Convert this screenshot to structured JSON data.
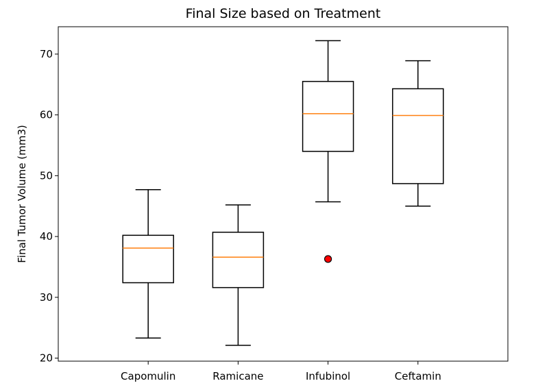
{
  "chart_data": {
    "type": "box",
    "title": "Final Size based on Treatment",
    "xlabel": "",
    "ylabel": "Final Tumor Volume (mm3)",
    "ylim": [
      19.5,
      74.5
    ],
    "yticks": [
      20,
      30,
      40,
      50,
      60,
      70
    ],
    "categories": [
      "Capomulin",
      "Ramicane",
      "Infubinol",
      "Ceftamin"
    ],
    "boxes": [
      {
        "name": "Capomulin",
        "whisker_low": 23.3,
        "q1": 32.4,
        "median": 38.1,
        "q3": 40.2,
        "whisker_high": 47.7,
        "outliers": []
      },
      {
        "name": "Ramicane",
        "whisker_low": 22.1,
        "q1": 31.6,
        "median": 36.6,
        "q3": 40.7,
        "whisker_high": 45.2,
        "outliers": []
      },
      {
        "name": "Infubinol",
        "whisker_low": 45.7,
        "q1": 54.0,
        "median": 60.2,
        "q3": 65.5,
        "whisker_high": 72.2,
        "outliers": [
          36.3
        ]
      },
      {
        "name": "Ceftamin",
        "whisker_low": 45.0,
        "q1": 48.7,
        "median": 59.9,
        "q3": 64.3,
        "whisker_high": 68.9,
        "outliers": []
      }
    ],
    "colors": {
      "median": "#ff7f0e",
      "outlier_fill": "#ff0000",
      "box": "#000000"
    },
    "grid": false
  }
}
